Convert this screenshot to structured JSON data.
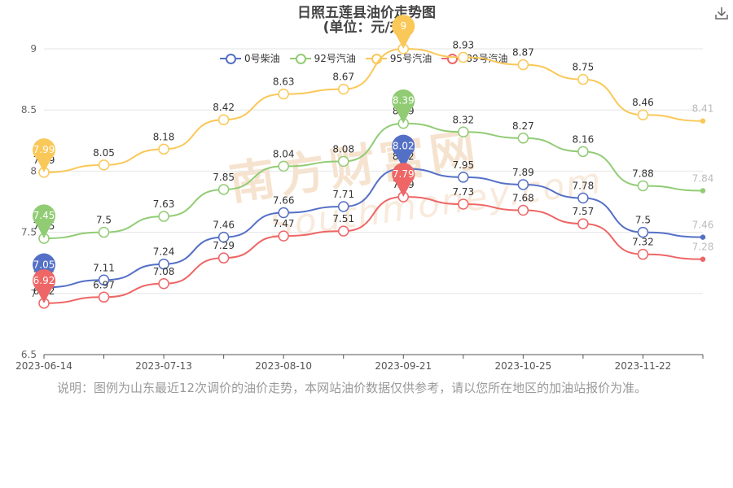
{
  "page": {
    "title": "日照五莲县油价走势图",
    "subtitle": "(单位：元/升)",
    "note": "说明：图例为山东最近12次调价的油价走势，本网站油价数据仅供参考，请以您所在地区的加油站报价为准。",
    "watermark_cn": "南方财富网",
    "watermark_en": "Southmoney.com"
  },
  "chart_data": {
    "type": "line",
    "x": [
      "2023-06-14",
      "2023-06-28",
      "2023-07-13",
      "2023-07-27",
      "2023-08-10",
      "2023-08-24",
      "2023-09-21",
      "2023-10-11",
      "2023-10-25",
      "2023-11-08",
      "2023-11-22",
      "2023-12-06"
    ],
    "x_tick_labels": [
      "2023-06-14",
      "2023-07-13",
      "2023-08-10",
      "2023-09-21",
      "2023-10-25",
      "2023-11-22"
    ],
    "ylim": [
      6.5,
      9
    ],
    "y_ticks": [
      "6.5",
      "7",
      "7.5",
      "8",
      "8.5",
      "9"
    ],
    "series": [
      {
        "name": "0号柴油",
        "color": "#5470c6",
        "values": [
          7.05,
          7.11,
          7.24,
          7.46,
          7.66,
          7.71,
          8.02,
          7.95,
          7.89,
          7.78,
          7.5,
          7.46
        ],
        "labels": [
          "7.05",
          "7.11",
          "7.24",
          "7.46",
          "7.66",
          "7.71",
          "8.02",
          "7.95",
          "7.89",
          "7.78",
          "7.5",
          "7.46"
        ],
        "pin_labels": [
          "7.05",
          "8.02"
        ]
      },
      {
        "name": "92号汽油",
        "color": "#91cc75",
        "values": [
          7.45,
          7.5,
          7.63,
          7.85,
          8.04,
          8.08,
          8.39,
          8.32,
          8.27,
          8.16,
          7.88,
          7.84
        ],
        "labels": [
          "7.45",
          "7.5",
          "7.63",
          "7.85",
          "8.04",
          "8.08",
          "8.39",
          "8.32",
          "8.27",
          "8.16",
          "7.88",
          "7.84"
        ],
        "pin_labels": [
          "7.45",
          "8.39"
        ]
      },
      {
        "name": "95号汽油",
        "color": "#fac858",
        "values": [
          7.99,
          8.05,
          8.18,
          8.42,
          8.63,
          8.67,
          9.0,
          8.93,
          8.87,
          8.75,
          8.46,
          8.41
        ],
        "labels": [
          "7.99",
          "8.05",
          "8.18",
          "8.42",
          "8.63",
          "8.67",
          "",
          "8.93",
          "8.87",
          "8.75",
          "8.46",
          "8.41"
        ],
        "pin_labels": [
          "7.99",
          "9"
        ]
      },
      {
        "name": "89号汽油",
        "color": "#ee6666",
        "values": [
          6.92,
          6.97,
          7.08,
          7.29,
          7.47,
          7.51,
          7.79,
          7.73,
          7.68,
          7.57,
          7.32,
          7.28
        ],
        "labels": [
          "6.92",
          "6.97",
          "7.08",
          "7.29",
          "7.47",
          "7.51",
          "7.79",
          "7.73",
          "7.68",
          "7.57",
          "7.32",
          "7.28"
        ],
        "pin_labels": [
          "6.92",
          "7.79"
        ]
      }
    ]
  }
}
